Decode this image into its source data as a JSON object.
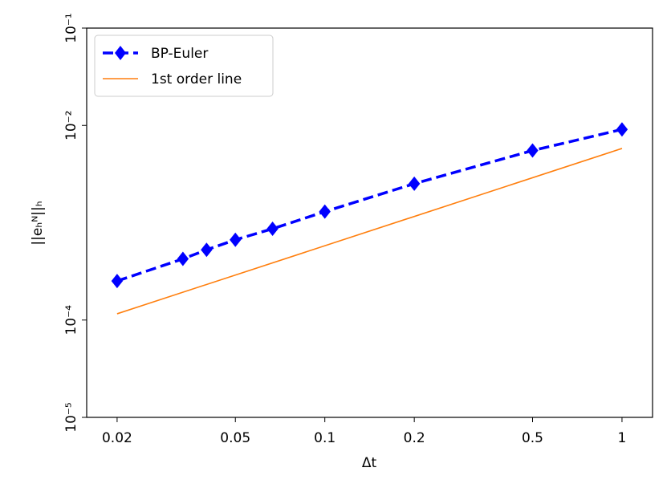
{
  "chart_data": {
    "type": "line",
    "x_label": "Δt",
    "y_label": "||eₕᴺ||ₕ",
    "log_x": true,
    "log_y": true,
    "xlim": [
      0.0158,
      1.267
    ],
    "ylim": [
      1e-05,
      0.1
    ],
    "xticks": [
      0.02,
      0.05,
      0.1,
      0.2,
      0.5,
      1
    ],
    "yticks": [
      {
        "value": 1e-05,
        "label": "10⁻⁵"
      },
      {
        "value": 0.0001,
        "label": "10⁻⁴"
      },
      {
        "value": 0.01,
        "label": "10⁻²"
      },
      {
        "value": 0.1,
        "label": "10⁻¹"
      }
    ],
    "legend": "upper left",
    "series": [
      {
        "name": "BP-Euler",
        "color": "#0000ff",
        "style": "dashed",
        "marker": "diamond",
        "x": [
          0.02,
          0.0333,
          0.04,
          0.05,
          0.0667,
          0.1,
          0.2,
          0.5,
          1
        ],
        "values": [
          0.000252,
          0.000425,
          0.000527,
          0.000668,
          0.000867,
          0.0013,
          0.00252,
          0.00552,
          0.0091
        ]
      },
      {
        "name": "1st order line",
        "color": "#ff7f0e",
        "style": "solid",
        "x": [
          0.02,
          1
        ],
        "values": [
          0.000116,
          0.0058
        ]
      }
    ]
  }
}
